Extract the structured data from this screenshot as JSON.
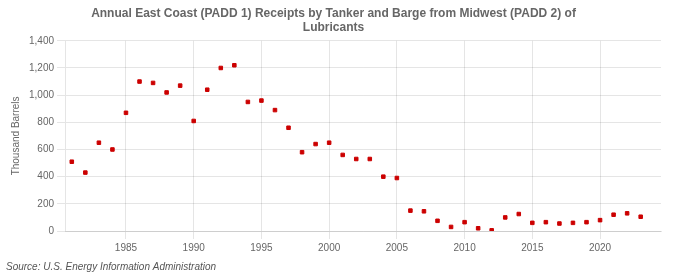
{
  "chart_data": {
    "type": "scatter",
    "title": "Annual East Coast (PADD 1) Receipts by Tanker and Barge from Midwest (PADD 2) of\nLubricants",
    "ylabel": "Thousand Barrels",
    "source": "Source: U.S. Energy Information Administration",
    "color": "#cc0000",
    "marker": "square",
    "grid": true,
    "x": [
      1981,
      1982,
      1983,
      1984,
      1985,
      1986,
      1987,
      1988,
      1989,
      1990,
      1991,
      1992,
      1993,
      1994,
      1995,
      1996,
      1997,
      1998,
      1999,
      2000,
      2001,
      2002,
      2003,
      2004,
      2005,
      2006,
      2007,
      2008,
      2009,
      2010,
      2011,
      2012,
      2013,
      2014,
      2015,
      2016,
      2017,
      2018,
      2019,
      2020,
      2021,
      2022,
      2023
    ],
    "values": [
      510,
      430,
      650,
      600,
      870,
      1100,
      1090,
      1020,
      1070,
      810,
      1040,
      1200,
      1220,
      950,
      960,
      890,
      760,
      580,
      640,
      650,
      560,
      530,
      530,
      400,
      390,
      150,
      145,
      75,
      30,
      65,
      20,
      5,
      100,
      125,
      60,
      65,
      55,
      60,
      65,
      80,
      120,
      130,
      105
    ],
    "xlim": [
      1980.5,
      2024.5
    ],
    "xticks": [
      1985,
      1990,
      1995,
      2000,
      2005,
      2010,
      2015,
      2020
    ],
    "ylim": [
      0,
      1400
    ],
    "yticks": [
      0,
      200,
      400,
      600,
      800,
      {
        "value": 1000,
        "label": "1,000"
      },
      {
        "value": 1200,
        "label": "1,200"
      },
      {
        "value": 1400,
        "label": "1,400"
      }
    ]
  }
}
